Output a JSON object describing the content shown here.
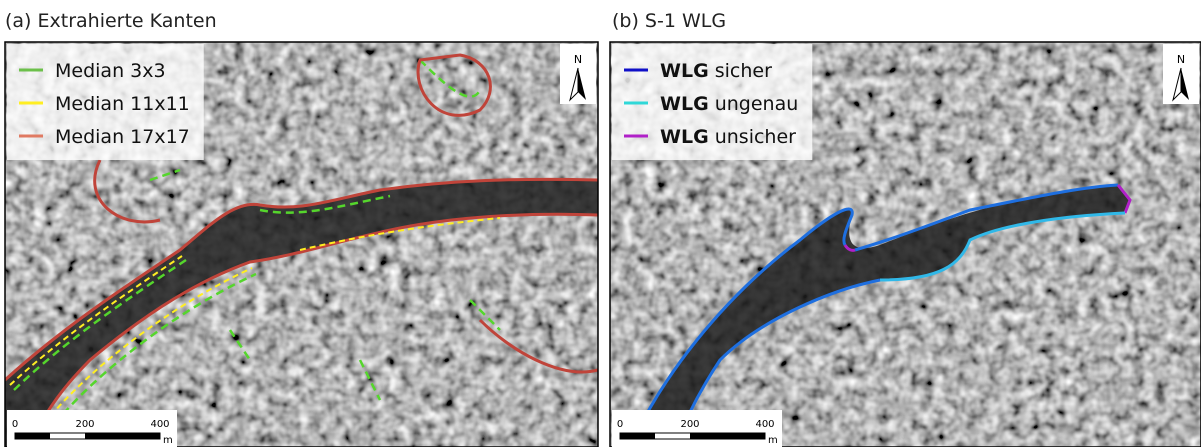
{
  "panels": [
    {
      "title": "(a) Extrahierte Kanten",
      "legend": [
        {
          "label": "Median 3x3",
          "color": "#6cc04a"
        },
        {
          "label": "Median 11x11",
          "color": "#ffee22"
        },
        {
          "label": "Median 17x17",
          "color": "#e07a62"
        }
      ],
      "north": "N",
      "scale": {
        "labels": [
          "0",
          "200",
          "400"
        ],
        "unit": "m"
      }
    },
    {
      "title": "(b) S-1 WLG",
      "legend": [
        {
          "bold": "WLG",
          "label": "sicher",
          "color": "#1010c8"
        },
        {
          "bold": "WLG",
          "label": "ungenau",
          "color": "#30d8d8"
        },
        {
          "bold": "WLG",
          "label": "unsicher",
          "color": "#b020c8"
        }
      ],
      "north": "N",
      "scale": {
        "labels": [
          "0",
          "200",
          "400"
        ],
        "unit": "m"
      }
    }
  ]
}
